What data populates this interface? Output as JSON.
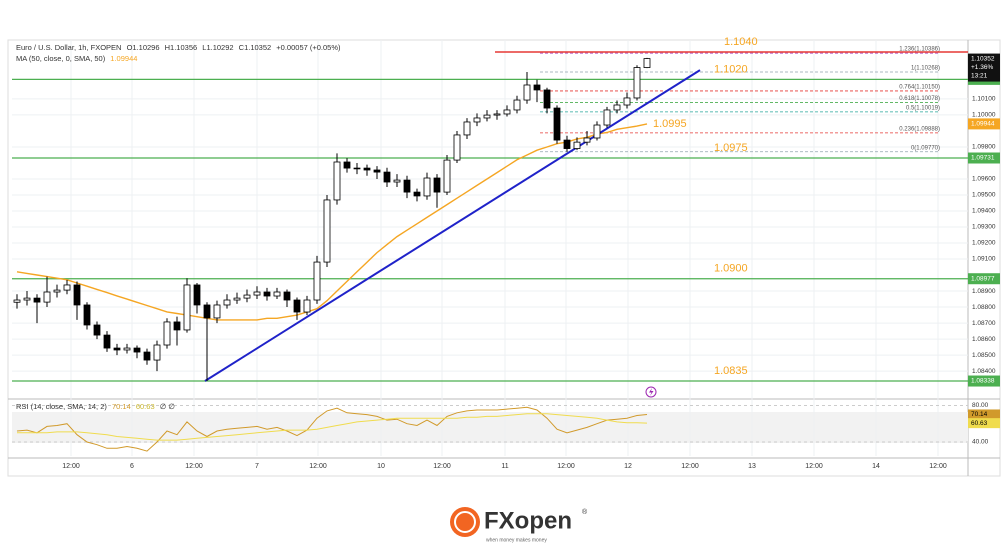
{
  "chart_data": {
    "type": "candlestick",
    "title": "Euro / U.S. Dollar, 1h, FXOPEN",
    "ohlc_legend": [
      {
        "label": "O",
        "value": 1.10296
      },
      {
        "label": "H",
        "value": 1.10356
      },
      {
        "label": "L",
        "value": 1.10292
      },
      {
        "label": "C",
        "value": 1.10352
      }
    ],
    "change": "+0.00057 (+0.05%)",
    "open": [
      1.0883,
      1.08844,
      1.08856,
      1.08831,
      1.08894,
      1.08906,
      1.08938,
      1.08813,
      1.08688,
      1.08625,
      1.08544,
      1.08532,
      1.08544,
      1.08519,
      1.08469,
      1.08563,
      1.08707,
      1.08657,
      1.08938,
      1.08813,
      1.08732,
      1.08813,
      1.08844,
      1.08856,
      1.08875,
      1.08894,
      1.08869,
      1.08894,
      1.08844,
      1.08769,
      1.08844,
      1.09081,
      1.09469,
      1.09706,
      1.09668,
      1.09668,
      1.09656,
      1.09643,
      1.09581,
      1.09593,
      1.09518,
      1.09494,
      1.09606,
      1.09518,
      1.09718,
      1.09875,
      1.09956,
      1.09981,
      1.09999,
      1.10006,
      1.10031,
      1.10093,
      1.10187,
      1.10156,
      1.10043,
      1.09843,
      1.0979,
      1.0983,
      1.09856,
      1.09937,
      1.10031,
      1.10062,
      1.10106,
      1.10296
    ],
    "high": [
      1.0888,
      1.089,
      1.0888,
      1.0899,
      1.0894,
      1.0897,
      1.0896,
      1.0883,
      1.0871,
      1.0865,
      1.0857,
      1.0857,
      1.0856,
      1.0854,
      1.0859,
      1.0873,
      1.0874,
      1.0898,
      1.0895,
      1.0883,
      1.0884,
      1.0888,
      1.0889,
      1.0891,
      1.0893,
      1.0892,
      1.0892,
      1.0891,
      1.0886,
      1.0887,
      1.0912,
      1.095,
      1.0976,
      1.0973,
      1.097,
      1.0969,
      1.0968,
      1.0967,
      1.0963,
      1.0962,
      1.0954,
      1.0964,
      1.0963,
      1.0975,
      1.099,
      1.0998,
      1.1001,
      1.1003,
      1.1003,
      1.1006,
      1.1012,
      1.10268,
      1.1022,
      1.1017,
      1.1006,
      1.0987,
      1.0986,
      1.099,
      1.0996,
      1.1005,
      1.1009,
      1.1014,
      1.1031,
      1.10356
    ],
    "low": [
      1.0879,
      1.0881,
      1.087,
      1.088,
      1.0886,
      1.0888,
      1.0872,
      1.0866,
      1.086,
      1.0852,
      1.085,
      1.0851,
      1.0848,
      1.0844,
      1.084,
      1.0854,
      1.0856,
      1.0864,
      1.0876,
      1.08338,
      1.087,
      1.0879,
      1.0882,
      1.0883,
      1.0885,
      1.0884,
      1.0885,
      1.088,
      1.0872,
      1.0875,
      1.0882,
      1.0905,
      1.0944,
      1.0964,
      1.0963,
      1.0962,
      1.096,
      1.0955,
      1.0955,
      1.0948,
      1.0946,
      1.0947,
      1.0942,
      1.095,
      1.097,
      1.0985,
      1.0993,
      1.0996,
      1.0997,
      1.0999,
      1.1001,
      1.1007,
      1.1008,
      1.1001,
      1.0982,
      1.0977,
      1.0978,
      1.0981,
      1.0984,
      1.0992,
      1.1001,
      1.1004,
      1.1009,
      1.10292
    ],
    "close": [
      1.08844,
      1.08856,
      1.08831,
      1.08894,
      1.08906,
      1.08938,
      1.08813,
      1.08688,
      1.08625,
      1.08544,
      1.08532,
      1.08544,
      1.08519,
      1.08469,
      1.08563,
      1.08707,
      1.08657,
      1.08938,
      1.08813,
      1.08732,
      1.08813,
      1.08844,
      1.08856,
      1.08875,
      1.08894,
      1.08869,
      1.08894,
      1.08844,
      1.08769,
      1.08844,
      1.09081,
      1.09469,
      1.09706,
      1.09668,
      1.09668,
      1.09656,
      1.09643,
      1.09581,
      1.09593,
      1.09518,
      1.09494,
      1.09606,
      1.09518,
      1.09718,
      1.09875,
      1.09956,
      1.09981,
      1.09999,
      1.10006,
      1.10031,
      1.10093,
      1.10187,
      1.10156,
      1.10043,
      1.09843,
      1.0979,
      1.0983,
      1.09856,
      1.09937,
      1.10031,
      1.10062,
      1.10106,
      1.10296,
      1.10352
    ],
    "up_color": "#ffffff",
    "down_color": "#000000",
    "xlim": [
      -0.5,
      95.1
    ],
    "xticks": [
      {
        "value": 5.4,
        "label": "12:00"
      },
      {
        "value": 11.5,
        "label": "6"
      },
      {
        "value": 17.7,
        "label": "12:00"
      },
      {
        "value": 24.0,
        "label": "7"
      },
      {
        "value": 30.1,
        "label": "12:00"
      },
      {
        "value": 36.4,
        "label": "10"
      },
      {
        "value": 42.5,
        "label": "12:00"
      },
      {
        "value": 48.8,
        "label": "11"
      },
      {
        "value": 54.9,
        "label": "12:00"
      },
      {
        "value": 61.1,
        "label": "12"
      },
      {
        "value": 67.3,
        "label": "12:00"
      },
      {
        "value": 73.5,
        "label": "13"
      },
      {
        "value": 79.7,
        "label": "12:00"
      },
      {
        "value": 85.9,
        "label": "14"
      },
      {
        "value": 92.1,
        "label": "12:00"
      }
    ],
    "ylim": [
      1.08232,
      1.10468
    ],
    "yticks": [
      {
        "value": 1.084,
        "label": "1.08400"
      },
      {
        "value": 1.085,
        "label": "1.08500"
      },
      {
        "value": 1.086,
        "label": "1.08600"
      },
      {
        "value": 1.087,
        "label": "1.08700"
      },
      {
        "value": 1.088,
        "label": "1.08800"
      },
      {
        "value": 1.089,
        "label": "1.08900"
      },
      {
        "value": 1.091,
        "label": "1.09100"
      },
      {
        "value": 1.092,
        "label": "1.09200"
      },
      {
        "value": 1.093,
        "label": "1.09300"
      },
      {
        "value": 1.094,
        "label": "1.09400"
      },
      {
        "value": 1.095,
        "label": "1.09500"
      },
      {
        "value": 1.096,
        "label": "1.09600"
      },
      {
        "value": 1.098,
        "label": "1.09800"
      },
      {
        "value": 1.1,
        "label": "1.10000"
      },
      {
        "value": 1.101,
        "label": "1.10100"
      }
    ],
    "grid": true,
    "ma": {
      "name": "MA (50, close, 0, SMA, 50)",
      "color": "#f5a623",
      "values": [
        1.0902,
        1.0901,
        1.09,
        1.0899,
        1.0898,
        1.0897,
        1.0895,
        1.0893,
        1.0891,
        1.0889,
        1.0887,
        1.0885,
        1.0883,
        1.0881,
        1.0879,
        1.0877,
        1.0876,
        1.0875,
        1.0874,
        1.0873,
        1.0872,
        1.0872,
        1.0872,
        1.0872,
        1.0872,
        1.0873,
        1.0873,
        1.0874,
        1.0875,
        1.0877,
        1.0879,
        1.0884,
        1.089,
        1.0896,
        1.0902,
        1.0908,
        1.0914,
        1.0919,
        1.0924,
        1.0928,
        1.0932,
        1.0936,
        1.094,
        1.0944,
        1.0948,
        1.0952,
        1.0956,
        1.096,
        1.0964,
        1.0968,
        1.0972,
        1.0975,
        1.0978,
        1.098,
        1.0982,
        1.0983,
        1.0985,
        1.0986,
        1.0988,
        1.0989,
        1.0991,
        1.0992,
        1.0993,
        1.09944
      ]
    },
    "levels": [
      {
        "value": 1.10393,
        "label": "1.1040",
        "color": "#e53935",
        "axis_box": false
      },
      {
        "value": 1.10222,
        "label": "1.1020",
        "color": "#4caf50",
        "axis_box": true
      },
      {
        "value": 1.09731,
        "label": "1.0975",
        "color": "#4caf50",
        "axis_box": true
      },
      {
        "value": 1.08977,
        "label": "1.0900",
        "color": "#4caf50",
        "axis_box": true
      },
      {
        "value": 1.08338,
        "label": "1.0835",
        "color": "#4caf50",
        "axis_box": true
      }
    ],
    "annotations": [
      {
        "text": "1.0995",
        "color": "#f5a623"
      }
    ],
    "fib": [
      {
        "price": 1.10386,
        "label": "1.236(1.10386)",
        "color": "#9c27b0"
      },
      {
        "price": 1.10268,
        "label": "1(1.10268)",
        "color": "#90a4ae"
      },
      {
        "price": 1.1015,
        "label": "0.764(1.10150)",
        "color": "#e53935"
      },
      {
        "price": 1.10078,
        "label": "0.618(1.10078)",
        "color": "#4caf50"
      },
      {
        "price": 1.10019,
        "label": "0.5(1.10019)",
        "color": "#26a69a"
      },
      {
        "price": 1.09888,
        "label": "0.236(1.09888)",
        "color": "#e53935"
      },
      {
        "price": 1.0977,
        "label": "0(1.09770)",
        "color": "#90a4ae"
      }
    ],
    "trendline": {
      "x": [
        18.8,
        68.3
      ],
      "y": [
        1.08338,
        1.1028
      ],
      "color": "#1f22c9"
    },
    "price_box": {
      "change": "+1.36%",
      "countdown": "13:21"
    },
    "rsi": {
      "name": "RSI (14, close, SMA, 14, 2)",
      "extra": "∅ ∅",
      "ylim": [
        24.6,
        86
      ],
      "yticks": [
        {
          "value": 80,
          "label": "80.00"
        },
        {
          "value": 40,
          "label": "40.00"
        }
      ],
      "series": [
        {
          "color": "#d19a2b",
          "values": [
            52,
            53,
            50,
            57,
            58,
            60,
            48,
            40,
            37,
            33,
            33,
            35,
            33,
            30,
            40,
            52,
            48,
            62,
            52,
            46,
            52,
            54,
            55,
            56,
            57,
            54,
            56,
            52,
            47,
            53,
            66,
            74,
            77,
            72,
            71,
            70,
            68,
            64,
            65,
            60,
            58,
            64,
            58,
            68,
            72,
            74,
            75,
            75,
            75,
            76,
            77,
            78,
            75,
            66,
            54,
            50,
            53,
            56,
            60,
            64,
            65,
            66,
            69,
            70.14
          ]
        },
        {
          "color": "#f0dc4e",
          "values": [
            50,
            50,
            50,
            50,
            51,
            51,
            51,
            50,
            49,
            48,
            46,
            45,
            44,
            43,
            42,
            42,
            42,
            43,
            44,
            45,
            46,
            47,
            48,
            49,
            50,
            51,
            52,
            53,
            53,
            53,
            54,
            56,
            58,
            60,
            62,
            63,
            64,
            65,
            66,
            66,
            66,
            66,
            66,
            66,
            66,
            67,
            67,
            68,
            68,
            69,
            70,
            71,
            71,
            71,
            70,
            69,
            68,
            67,
            66,
            64,
            62,
            61,
            61,
            60.63
          ]
        }
      ]
    },
    "brand": "FXopen",
    "tagline": "when money makes money"
  }
}
